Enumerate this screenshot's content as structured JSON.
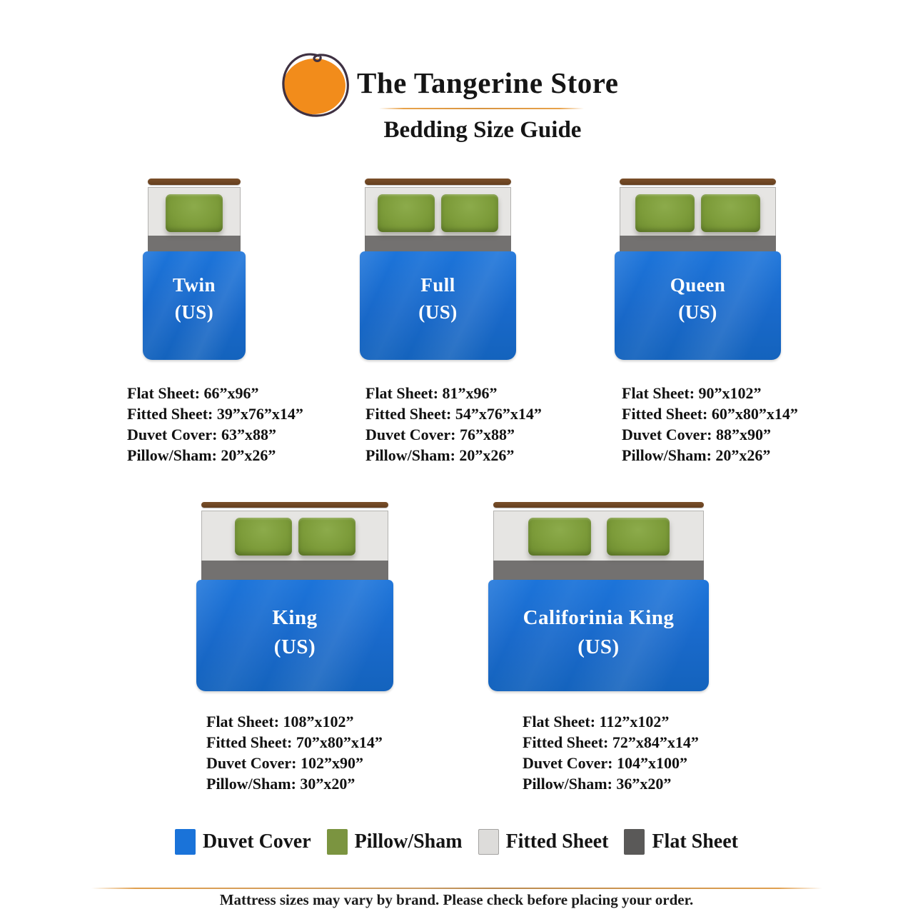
{
  "header": {
    "store_name": "The Tangerine Store",
    "subtitle": "Bedding Size Guide"
  },
  "colors": {
    "duvet_cover": "#1a73d9",
    "pillow_sham": "#7b9440",
    "fitted_sheet": "#e6e5e3",
    "flat_sheet": "#737170",
    "headboard": "#6b4423",
    "accent_line": "#e8a24a",
    "logo_orange": "#f28c1b"
  },
  "sizes": [
    {
      "name": "Twin",
      "region": "(US)",
      "pillows": 1,
      "specs": [
        "Flat Sheet: 66”x96”",
        "Fitted Sheet: 39”x76”x14”",
        "Duvet Cover: 63”x88”",
        "Pillow/Sham: 20”x26”"
      ]
    },
    {
      "name": "Full",
      "region": "(US)",
      "pillows": 2,
      "specs": [
        "Flat Sheet: 81”x96”",
        "Fitted Sheet: 54”x76”x14”",
        "Duvet Cover: 76”x88”",
        "Pillow/Sham: 20”x26”"
      ]
    },
    {
      "name": "Queen",
      "region": "(US)",
      "pillows": 2,
      "specs": [
        "Flat Sheet: 90”x102”",
        "Fitted Sheet: 60”x80”x14”",
        "Duvet Cover: 88”x90”",
        "Pillow/Sham: 20”x26”"
      ]
    },
    {
      "name": "King",
      "region": "(US)",
      "pillows": 2,
      "specs": [
        "Flat Sheet: 108”x102”",
        "Fitted Sheet: 70”x80”x14”",
        "Duvet Cover: 102”x90”",
        "Pillow/Sham: 30”x20”"
      ]
    },
    {
      "name": "Califorinia King",
      "region": "(US)",
      "pillows": 2,
      "specs": [
        "Flat Sheet: 112”x102”",
        "Fitted Sheet: 72”x84”x14”",
        "Duvet Cover: 104”x100”",
        "Pillow/Sham: 36”x20”"
      ]
    }
  ],
  "legend": {
    "items": [
      {
        "label": "Duvet Cover",
        "color": "#1a73d9"
      },
      {
        "label": "Pillow/Sham",
        "color": "#7b9440"
      },
      {
        "label": "Fitted Sheet",
        "color": "#dddcda"
      },
      {
        "label": "Flat Sheet",
        "color": "#5a5958"
      }
    ]
  },
  "footer": {
    "note": "Mattress sizes may vary by brand. Please check before placing your order."
  }
}
